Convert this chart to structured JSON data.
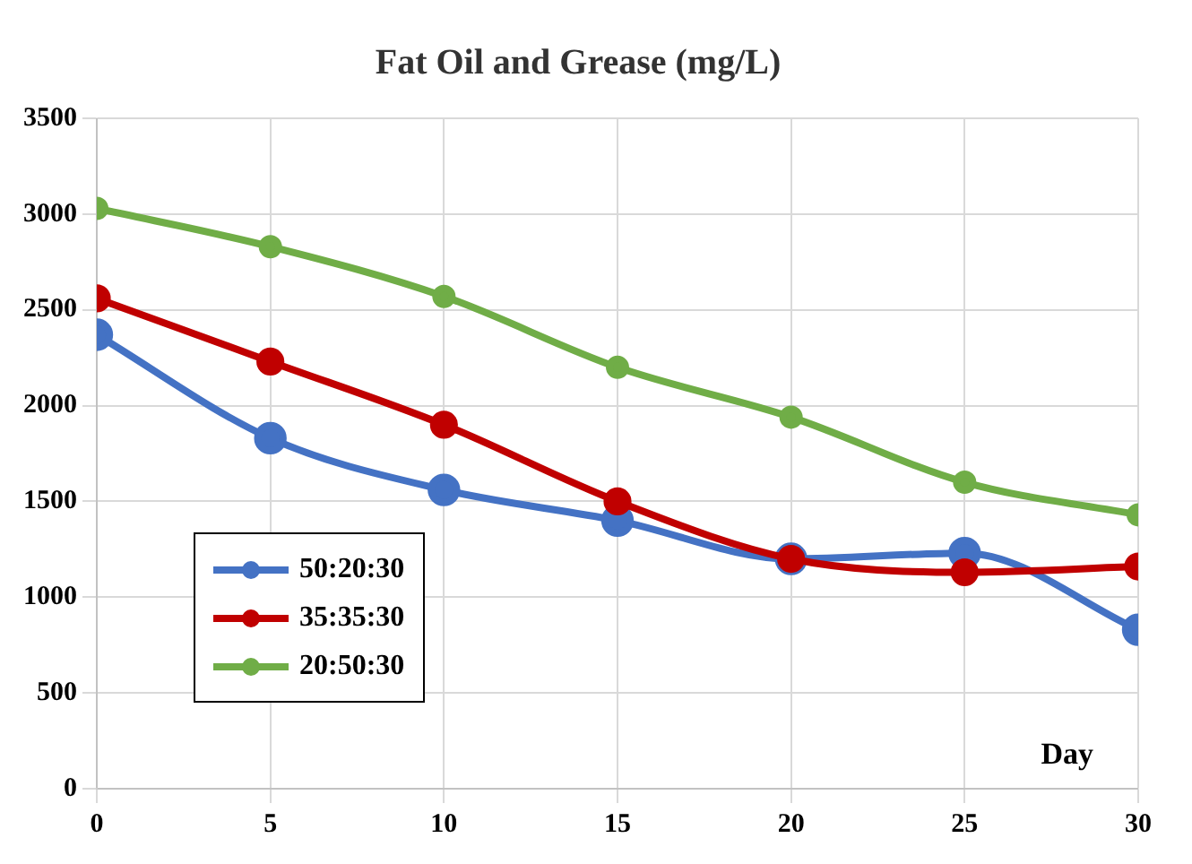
{
  "chart_data": {
    "type": "line",
    "title": "Fat Oil and Grease (mg/L)",
    "xlabel": "Day",
    "x": [
      0,
      5,
      10,
      15,
      20,
      25,
      30
    ],
    "series": [
      {
        "name": "50:20:30",
        "color": "#4472c4",
        "values": [
          2370,
          1830,
          1560,
          1400,
          1200,
          1230,
          830
        ]
      },
      {
        "name": "35:35:30",
        "color": "#c00000",
        "values": [
          2560,
          2230,
          1900,
          1500,
          1200,
          1130,
          1160
        ]
      },
      {
        "name": "20:50:30",
        "color": "#70ad47",
        "values": [
          3030,
          2830,
          2570,
          2200,
          1940,
          1600,
          1430
        ]
      }
    ],
    "xlim": [
      0,
      30
    ],
    "xticks": [
      0,
      5,
      10,
      15,
      20,
      25,
      30
    ],
    "ylim": [
      0,
      3500
    ],
    "yticks": [
      0,
      500,
      1000,
      1500,
      2000,
      2500,
      3000,
      3500
    ],
    "grid": true,
    "legend": "bottom left",
    "marker": "circle",
    "line_style": "solid"
  }
}
